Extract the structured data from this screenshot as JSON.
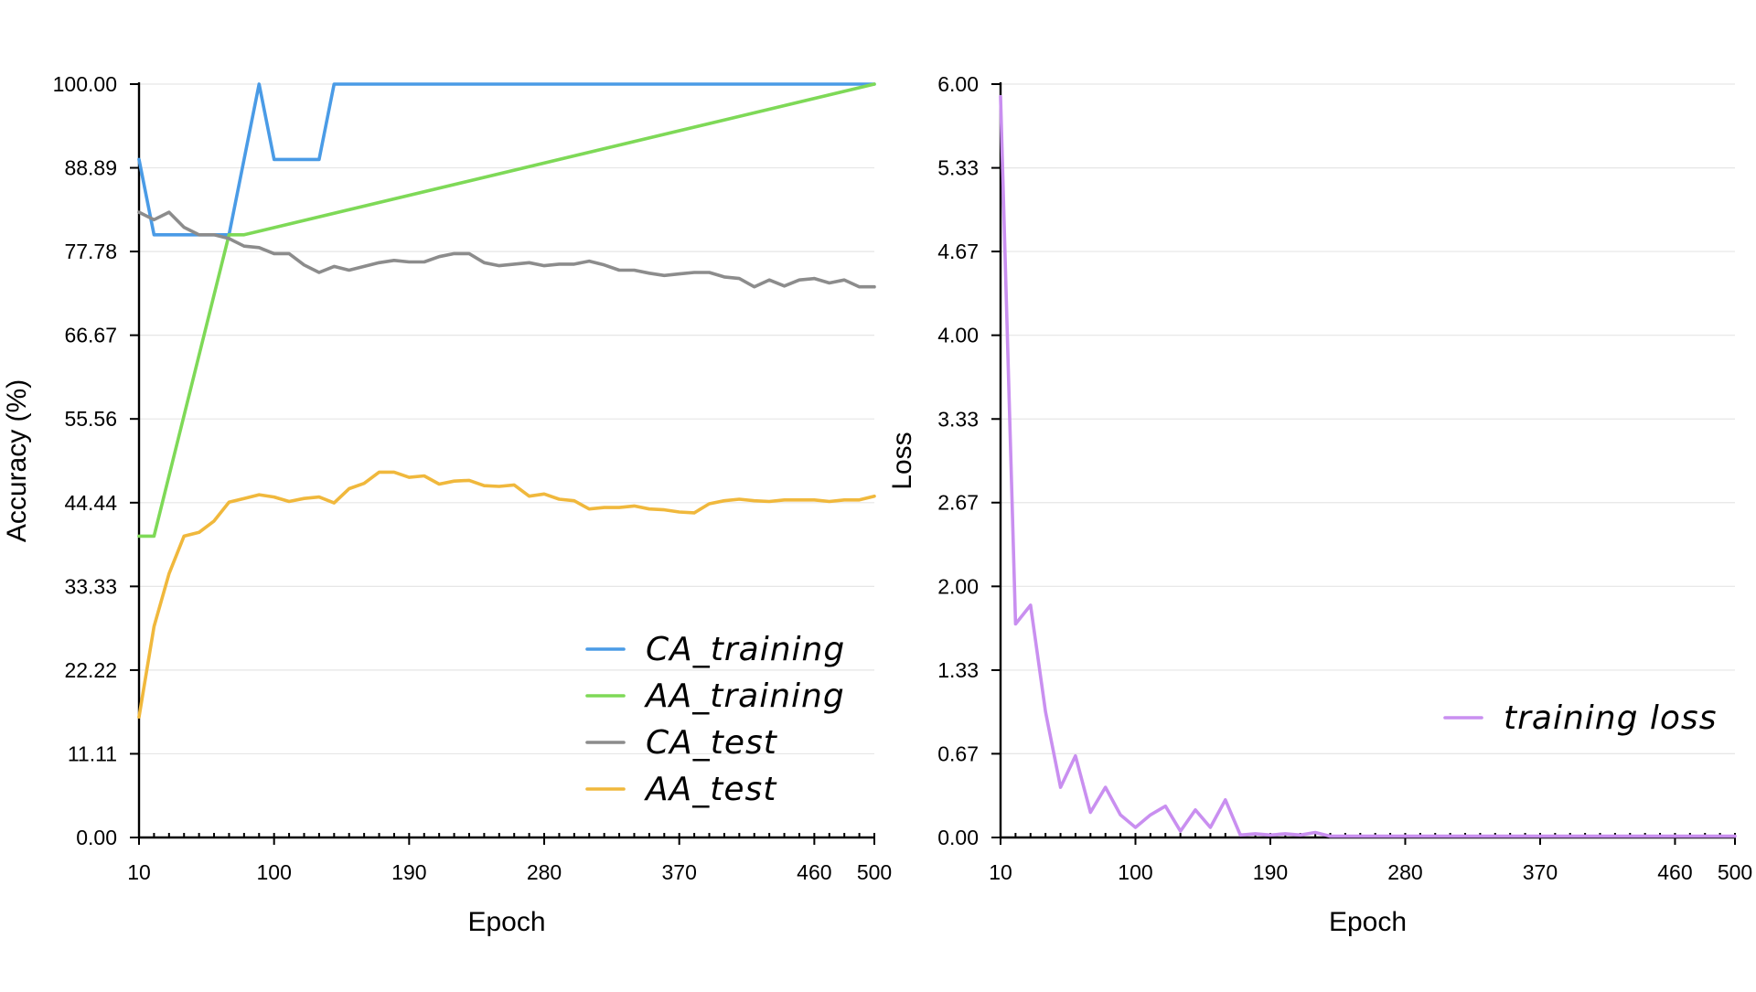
{
  "chart_data": [
    {
      "type": "line",
      "xlabel": "Epoch",
      "ylabel": "Accuracy (%)",
      "xlim": [
        10,
        500
      ],
      "ylim": [
        0,
        100
      ],
      "xticks": [
        "10",
        "100",
        "190",
        "280",
        "370",
        "460",
        "500"
      ],
      "xtick_values": [
        10,
        100,
        190,
        280,
        370,
        460,
        500
      ],
      "yticks": [
        "0.00",
        "11.11",
        "22.22",
        "33.33",
        "44.44",
        "55.56",
        "66.67",
        "77.78",
        "88.89",
        "100.00"
      ],
      "ytick_values": [
        0,
        11.11,
        22.22,
        33.33,
        44.44,
        55.56,
        66.67,
        77.78,
        88.89,
        100
      ],
      "grid": true,
      "legend": "bottom-right",
      "series": [
        {
          "name": "CA_training",
          "color": "#4a9be6",
          "x": [
            10,
            20,
            60,
            70,
            90,
            100,
            130,
            140,
            500
          ],
          "values": [
            90,
            80,
            80,
            80,
            100,
            90,
            90,
            100,
            100
          ]
        },
        {
          "name": "AA_training",
          "color": "#7ed957",
          "x": [
            10,
            20,
            70,
            80,
            500
          ],
          "values": [
            40,
            40,
            80,
            80,
            100
          ]
        },
        {
          "name": "CA_test",
          "color": "#8c8c8c",
          "x": [
            10,
            20,
            30,
            40,
            50,
            60,
            70,
            80,
            90,
            100,
            110,
            120,
            130,
            140,
            150,
            160,
            170,
            180,
            190,
            200,
            210,
            220,
            230,
            240,
            250,
            260,
            270,
            280,
            290,
            300,
            310,
            320,
            330,
            340,
            350,
            360,
            370,
            380,
            390,
            400,
            410,
            420,
            430,
            440,
            450,
            460,
            470,
            480,
            490,
            500
          ],
          "values": [
            83,
            82,
            83,
            81,
            80,
            80,
            79.5,
            78.5,
            78.3,
            77.5,
            77.5,
            76,
            75,
            75.8,
            75.3,
            75.8,
            76.3,
            76.6,
            76.4,
            76.4,
            77.1,
            77.5,
            77.5,
            76.3,
            75.9,
            76.1,
            76.3,
            75.9,
            76.1,
            76.1,
            76.5,
            76,
            75.3,
            75.3,
            74.9,
            74.6,
            74.8,
            75,
            75,
            74.4,
            74.2,
            73.1,
            74,
            73.2,
            74,
            74.2,
            73.6,
            74,
            73.1,
            73.1
          ]
        },
        {
          "name": "AA_test",
          "color": "#f0b83c",
          "x": [
            10,
            20,
            30,
            40,
            50,
            60,
            70,
            80,
            90,
            100,
            110,
            120,
            130,
            140,
            150,
            160,
            170,
            180,
            190,
            200,
            210,
            220,
            230,
            240,
            250,
            260,
            270,
            280,
            290,
            300,
            310,
            320,
            330,
            340,
            350,
            360,
            370,
            380,
            390,
            400,
            410,
            420,
            430,
            440,
            450,
            460,
            470,
            480,
            490,
            500
          ],
          "values": [
            16,
            28,
            35,
            40,
            40.5,
            42,
            44.5,
            45,
            45.5,
            45.2,
            44.6,
            45,
            45.2,
            44.4,
            46.3,
            47,
            48.5,
            48.5,
            47.8,
            48,
            46.9,
            47.3,
            47.4,
            46.7,
            46.6,
            46.8,
            45.3,
            45.6,
            44.9,
            44.7,
            43.6,
            43.8,
            43.8,
            44,
            43.6,
            43.5,
            43.2,
            43.1,
            44.3,
            44.7,
            44.9,
            44.7,
            44.6,
            44.8,
            44.8,
            44.8,
            44.6,
            44.8,
            44.8,
            45.3
          ]
        }
      ]
    },
    {
      "type": "line",
      "xlabel": "Epoch",
      "ylabel": "Loss",
      "xlim": [
        10,
        500
      ],
      "ylim": [
        0,
        6
      ],
      "xticks": [
        "10",
        "100",
        "190",
        "280",
        "370",
        "460",
        "500"
      ],
      "xtick_values": [
        10,
        100,
        190,
        280,
        370,
        460,
        500
      ],
      "yticks": [
        "0.00",
        "0.67",
        "1.33",
        "2.00",
        "2.67",
        "3.33",
        "4.00",
        "4.67",
        "5.33",
        "6.00"
      ],
      "ytick_values": [
        0,
        0.667,
        1.333,
        2,
        2.667,
        3.333,
        4,
        4.667,
        5.333,
        6
      ],
      "grid": true,
      "legend": "right",
      "series": [
        {
          "name": "training loss",
          "color": "#c98ff0",
          "x": [
            10,
            20,
            30,
            40,
            50,
            60,
            70,
            80,
            90,
            100,
            110,
            120,
            130,
            140,
            150,
            160,
            170,
            180,
            190,
            200,
            210,
            220,
            230,
            240,
            250,
            260,
            270,
            280,
            290,
            300,
            310,
            320,
            330,
            340,
            350,
            360,
            370,
            380,
            390,
            400,
            410,
            420,
            430,
            440,
            450,
            460,
            470,
            480,
            490,
            500
          ],
          "values": [
            5.9,
            1.7,
            1.85,
            1.0,
            0.4,
            0.65,
            0.2,
            0.4,
            0.18,
            0.08,
            0.18,
            0.25,
            0.05,
            0.22,
            0.08,
            0.3,
            0.02,
            0.03,
            0.02,
            0.03,
            0.02,
            0.04,
            0.01,
            0.01,
            0.01,
            0.01,
            0.01,
            0.01,
            0.01,
            0.01,
            0.01,
            0.01,
            0.01,
            0.01,
            0.01,
            0.01,
            0.01,
            0.01,
            0.01,
            0.01,
            0.01,
            0.01,
            0.01,
            0.01,
            0.01,
            0.01,
            0.01,
            0.01,
            0.01,
            0.01
          ]
        }
      ]
    }
  ]
}
